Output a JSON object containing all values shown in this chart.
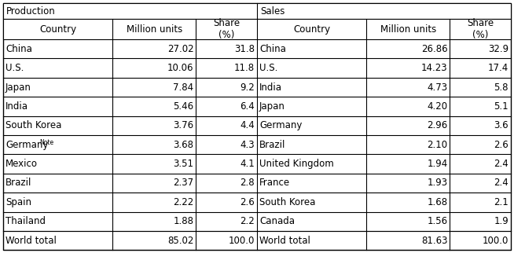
{
  "prod_header": "Production",
  "sales_header": "Sales",
  "col_headers": [
    "Country",
    "Million units",
    "Share\n(%)",
    "Country",
    "Million units",
    "Share\n(%)"
  ],
  "prod_rows": [
    [
      "China",
      "27.02",
      "31.8"
    ],
    [
      "U.S.",
      "10.06",
      "11.8"
    ],
    [
      "Japan",
      "7.84",
      "9.2"
    ],
    [
      "India",
      "5.46",
      "6.4"
    ],
    [
      "South Korea",
      "3.76",
      "4.4"
    ],
    [
      "Germany",
      "3.68",
      "4.3"
    ],
    [
      "Mexico",
      "3.51",
      "4.1"
    ],
    [
      "Brazil",
      "2.37",
      "2.8"
    ],
    [
      "Spain",
      "2.22",
      "2.6"
    ],
    [
      "Thailand",
      "1.88",
      "2.2"
    ]
  ],
  "prod_total": [
    "World total",
    "85.02",
    "100.0"
  ],
  "sales_rows": [
    [
      "China",
      "26.86",
      "32.9"
    ],
    [
      "U.S.",
      "14.23",
      "17.4"
    ],
    [
      "India",
      "4.73",
      "5.8"
    ],
    [
      "Japan",
      "4.20",
      "5.1"
    ],
    [
      "Germany",
      "2.96",
      "3.6"
    ],
    [
      "Brazil",
      "2.10",
      "2.6"
    ],
    [
      "United Kingdom",
      "1.94",
      "2.4"
    ],
    [
      "France",
      "1.93",
      "2.4"
    ],
    [
      "South Korea",
      "1.68",
      "2.1"
    ],
    [
      "Canada",
      "1.56",
      "1.9"
    ]
  ],
  "sales_total": [
    "World total",
    "81.63",
    "100.0"
  ],
  "germany_note": "Note",
  "border_color": "#000000",
  "font_size": 8.5,
  "fig_width": 6.54,
  "fig_height": 3.22
}
